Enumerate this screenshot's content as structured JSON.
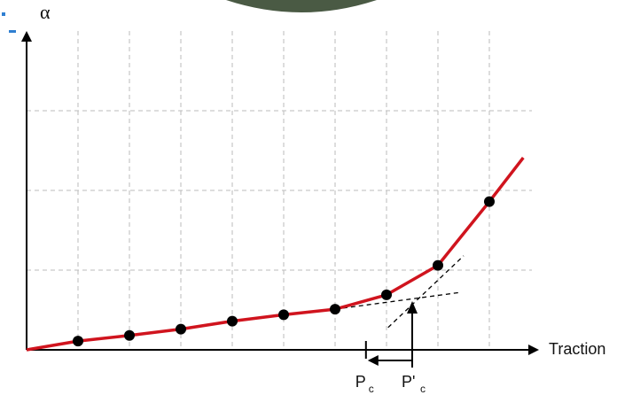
{
  "chart_data": {
    "type": "line",
    "y_label": "α",
    "x_label": "Traction",
    "xlim": [
      0,
      10
    ],
    "ylim": [
      0,
      4
    ],
    "xticks": [
      1,
      2,
      3,
      4,
      5,
      6,
      7,
      8,
      9
    ],
    "yticks": [
      1,
      2,
      3
    ],
    "grid": true,
    "series": [
      {
        "color": "#d0141e",
        "marker": false,
        "x": [
          0,
          1,
          2,
          3,
          4,
          5,
          6,
          7,
          8,
          9,
          9.66
        ],
        "values": [
          0,
          0.11,
          0.18,
          0.26,
          0.36,
          0.44,
          0.51,
          0.69,
          1.06,
          1.86,
          2.41
        ]
      },
      {
        "color": "#000000",
        "marker": true,
        "x": [
          1,
          2,
          3,
          4,
          5,
          6,
          7,
          8,
          9
        ],
        "values": [
          0.11,
          0.18,
          0.26,
          0.36,
          0.44,
          0.51,
          0.69,
          1.06,
          1.86
        ]
      }
    ],
    "tangents": [
      {
        "x": [
          6,
          8.43
        ],
        "values": [
          0.51,
          0.72
        ]
      },
      {
        "x": [
          7.03,
          8.5
        ],
        "values": [
          0.28,
          1.18
        ]
      }
    ],
    "annotations": [
      {
        "label": "P",
        "subscript": "c",
        "x": 6.6
      },
      {
        "label": "P'",
        "subscript": "c",
        "x": 7.5
      }
    ]
  }
}
